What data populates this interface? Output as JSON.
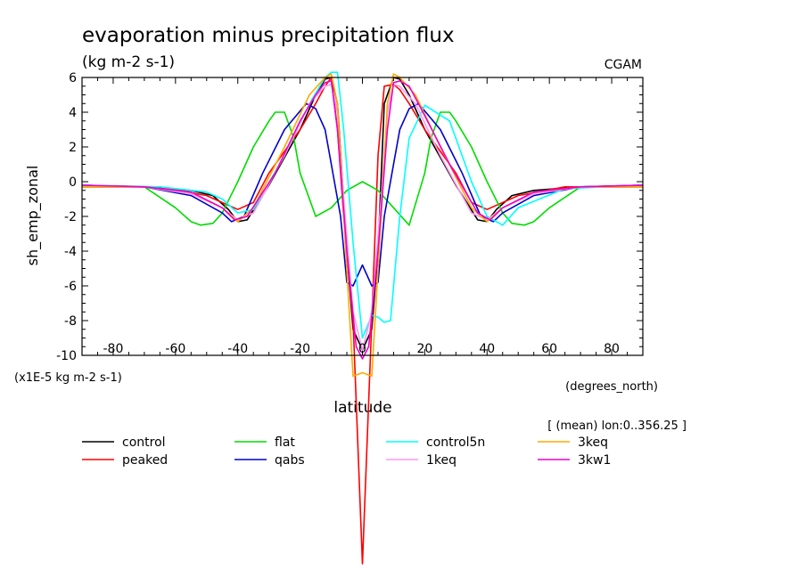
{
  "chart_data": {
    "type": "line",
    "title": "evaporation minus precipitation flux",
    "subtitle": "(kg m-2 s-1)",
    "source_label": "CGAM",
    "ylabel": "sh_emp_zonal",
    "xlabel": "latitude",
    "x_units": "(degrees_north)",
    "y_units": "(x1E-5 kg m-2 s-1)",
    "region_note": "[ (mean) lon:0..356.25 ]",
    "xlim": [
      -90,
      90
    ],
    "ylim": [
      -10,
      6
    ],
    "x_ticks": [
      -80,
      -60,
      -40,
      -20,
      0,
      20,
      40,
      60,
      80
    ],
    "y_ticks": [
      6,
      4,
      2,
      0,
      -2,
      -4,
      -6,
      -8,
      -10
    ],
    "grid": false,
    "legend_position": "bottom",
    "series": [
      {
        "name": "control",
        "color": "#000000",
        "x": [
          -90,
          -70,
          -55,
          -48,
          -43,
          -40,
          -37,
          -30,
          -20,
          -15,
          -12,
          -10,
          -8,
          -5,
          -3,
          0,
          3,
          5,
          7,
          10,
          12,
          15,
          20,
          30,
          37,
          40,
          43,
          48,
          55,
          70,
          90
        ],
        "y": [
          -0.3,
          -0.3,
          -0.5,
          -0.8,
          -1.6,
          -2.3,
          -2.2,
          -0.2,
          3.0,
          5.0,
          5.9,
          6.0,
          4.5,
          -4.0,
          -8.5,
          -9.7,
          -8.5,
          -4.0,
          4.5,
          6.0,
          5.9,
          5.0,
          3.0,
          -0.2,
          -2.2,
          -2.3,
          -1.6,
          -0.8,
          -0.5,
          -0.3,
          -0.3
        ]
      },
      {
        "name": "peaked",
        "color": "#ff0000",
        "x": [
          -90,
          -65,
          -50,
          -40,
          -35,
          -30,
          -20,
          -15,
          -12,
          -10,
          -8,
          -6,
          -3,
          0,
          3,
          5,
          7,
          10,
          12,
          15,
          20,
          30,
          35,
          40,
          50,
          65,
          90
        ],
        "y": [
          -0.3,
          -0.3,
          -0.8,
          -1.6,
          -1.2,
          0.5,
          3.0,
          4.5,
          5.5,
          6.0,
          3.0,
          -2.0,
          -8.0,
          -22.0,
          -8.0,
          1.5,
          5.5,
          5.6,
          5.3,
          4.5,
          3.0,
          0.5,
          -1.2,
          -1.6,
          -0.8,
          -0.3,
          -0.3
        ]
      },
      {
        "name": "flat",
        "color": "#00dd00",
        "x": [
          -90,
          -70,
          -60,
          -55,
          -52,
          -48,
          -45,
          -40,
          -35,
          -30,
          -28,
          -25,
          -22,
          -20,
          -15,
          -10,
          -5,
          0,
          5,
          10,
          15,
          20,
          22,
          25,
          28,
          30,
          35,
          40,
          45,
          48,
          52,
          55,
          60,
          70,
          90
        ],
        "y": [
          -0.2,
          -0.3,
          -1.5,
          -2.3,
          -2.5,
          -2.4,
          -1.8,
          0.0,
          2.0,
          3.5,
          4.0,
          4.0,
          2.5,
          0.5,
          -2.0,
          -1.5,
          -0.5,
          0.0,
          -0.5,
          -1.5,
          -2.5,
          0.5,
          2.5,
          4.0,
          4.0,
          3.5,
          2.0,
          0.0,
          -1.8,
          -2.4,
          -2.5,
          -2.3,
          -1.5,
          -0.3,
          -0.2
        ]
      },
      {
        "name": "qabs",
        "color": "#0000cc",
        "x": [
          -90,
          -70,
          -55,
          -45,
          -42,
          -38,
          -32,
          -25,
          -18,
          -15,
          -12,
          -10,
          -7,
          -5,
          -3,
          0,
          3,
          5,
          7,
          10,
          12,
          15,
          18,
          25,
          32,
          38,
          42,
          45,
          55,
          70,
          90
        ],
        "y": [
          -0.2,
          -0.3,
          -0.8,
          -1.8,
          -2.3,
          -2.0,
          0.5,
          3.0,
          4.5,
          4.2,
          3.0,
          1.0,
          -2.0,
          -5.8,
          -6.0,
          -4.8,
          -6.0,
          -5.8,
          -2.0,
          1.0,
          3.0,
          4.2,
          4.5,
          3.0,
          0.5,
          -2.0,
          -2.3,
          -1.8,
          -0.8,
          -0.3,
          -0.2
        ]
      },
      {
        "name": "control5n",
        "color": "#00ffff",
        "x": [
          -90,
          -65,
          -50,
          -45,
          -40,
          -35,
          -25,
          -17,
          -12,
          -10,
          -8,
          -6,
          -3,
          0,
          3,
          5,
          7,
          9,
          12,
          15,
          20,
          28,
          35,
          40,
          45,
          50,
          65,
          90
        ],
        "y": [
          -0.2,
          -0.3,
          -0.6,
          -1.0,
          -1.8,
          -1.6,
          1.5,
          4.5,
          6.0,
          6.3,
          6.3,
          3.0,
          -3.5,
          -9.0,
          -7.7,
          -7.8,
          -8.1,
          -8.0,
          -2.0,
          2.5,
          4.4,
          3.5,
          0.0,
          -2.0,
          -2.5,
          -1.5,
          -0.4,
          -0.2
        ]
      },
      {
        "name": "1keq",
        "color": "#ff99ee",
        "x": [
          -90,
          -70,
          -55,
          -45,
          -40,
          -35,
          -25,
          -17,
          -12,
          -10,
          -8,
          -6,
          -3,
          0,
          3,
          6,
          8,
          10,
          12,
          17,
          25,
          35,
          40,
          45,
          55,
          70,
          90
        ],
        "y": [
          -0.3,
          -0.3,
          -0.7,
          -1.5,
          -2.2,
          -1.8,
          1.5,
          4.5,
          5.5,
          5.6,
          4.0,
          -1.0,
          -7.5,
          -9.7,
          -7.5,
          -1.0,
          4.0,
          5.6,
          5.5,
          4.5,
          1.5,
          -1.8,
          -2.2,
          -1.5,
          -0.7,
          -0.3,
          -0.3
        ]
      },
      {
        "name": "3keq",
        "color": "#ffaa00",
        "x": [
          -90,
          -70,
          -55,
          -45,
          -40,
          -35,
          -25,
          -17,
          -12,
          -10,
          -8,
          -6,
          -3,
          0,
          3,
          6,
          8,
          10,
          12,
          17,
          25,
          35,
          40,
          45,
          55,
          70,
          90
        ],
        "y": [
          -0.3,
          -0.3,
          -0.6,
          -1.5,
          -2.3,
          -1.5,
          2.0,
          5.0,
          6.0,
          6.2,
          4.5,
          -2.0,
          -11.2,
          -11.0,
          -11.2,
          -2.0,
          4.5,
          6.2,
          6.0,
          5.0,
          2.0,
          -1.5,
          -2.3,
          -1.5,
          -0.6,
          -0.3,
          -0.3
        ]
      },
      {
        "name": "3kw1",
        "color": "#ee00cc",
        "x": [
          -90,
          -70,
          -55,
          -45,
          -41,
          -37,
          -28,
          -20,
          -15,
          -12,
          -10,
          -8,
          -5,
          -2,
          0,
          2,
          5,
          8,
          10,
          12,
          15,
          20,
          28,
          37,
          41,
          45,
          55,
          70,
          90
        ],
        "y": [
          -0.2,
          -0.3,
          -0.6,
          -1.5,
          -2.2,
          -2.0,
          0.5,
          3.5,
          5.0,
          5.7,
          5.8,
          3.0,
          -4.0,
          -9.5,
          -10.2,
          -9.5,
          -4.0,
          3.0,
          5.7,
          5.8,
          5.5,
          3.8,
          1.0,
          -1.8,
          -2.2,
          -1.5,
          -0.6,
          -0.3,
          -0.2
        ]
      }
    ]
  }
}
